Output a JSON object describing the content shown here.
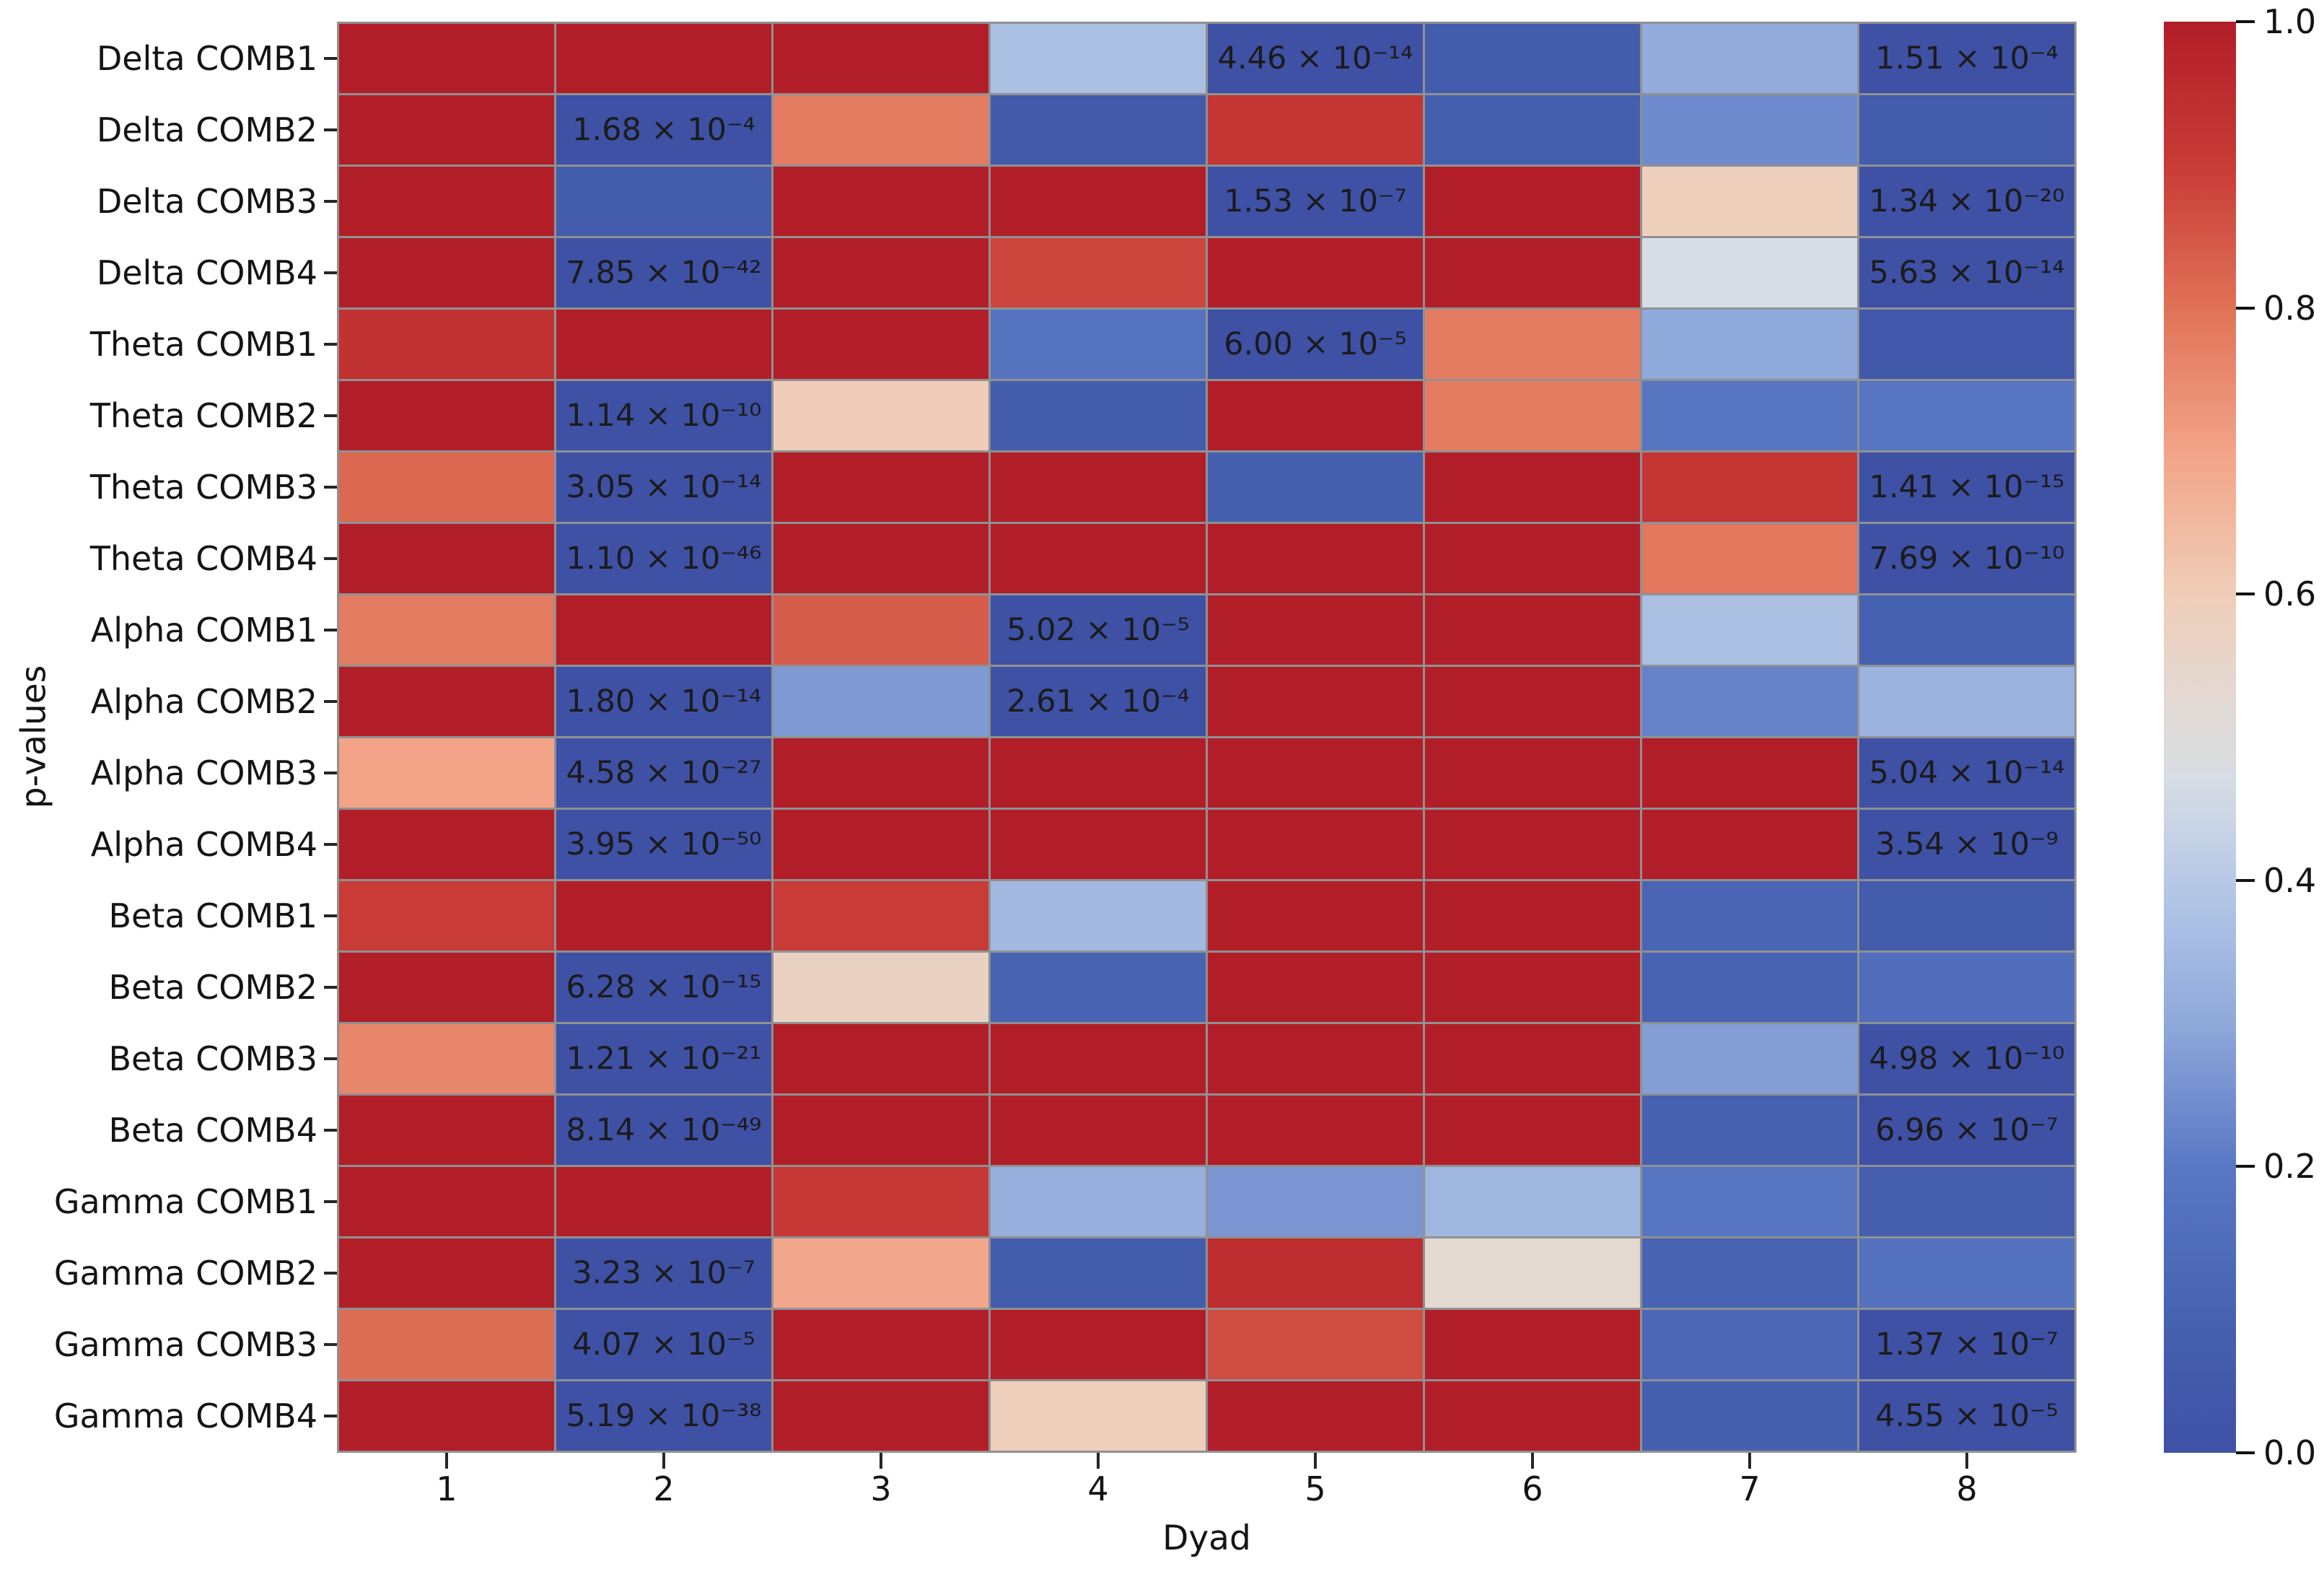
{
  "figure": {
    "xlabel": "Dyad",
    "ylabel": "p-values"
  },
  "chart_data": {
    "type": "heatmap",
    "title": "",
    "xlabel": "Dyad",
    "ylabel": "p-values",
    "x_categories": [
      "1",
      "2",
      "3",
      "4",
      "5",
      "6",
      "7",
      "8"
    ],
    "y_categories": [
      "Delta COMB1",
      "Delta COMB2",
      "Delta COMB3",
      "Delta COMB4",
      "Theta COMB1",
      "Theta COMB2",
      "Theta COMB3",
      "Theta COMB4",
      "Alpha COMB1",
      "Alpha COMB2",
      "Alpha COMB3",
      "Alpha COMB4",
      "Beta COMB1",
      "Beta COMB2",
      "Beta COMB3",
      "Beta COMB4",
      "Gamma COMB1",
      "Gamma COMB2",
      "Gamma COMB3",
      "Gamma COMB4"
    ],
    "values": [
      [
        1.0,
        1.0,
        1.0,
        0.37,
        0.0,
        0.06,
        0.31,
        0.0
      ],
      [
        1.0,
        0.0,
        0.78,
        0.05,
        0.92,
        0.08,
        0.24,
        0.06
      ],
      [
        1.0,
        0.06,
        1.0,
        1.0,
        0.0,
        1.0,
        0.59,
        0.0
      ],
      [
        1.0,
        0.0,
        1.0,
        0.88,
        1.0,
        1.0,
        0.47,
        0.0
      ],
      [
        0.93,
        1.0,
        1.0,
        0.18,
        0.0,
        0.78,
        0.3,
        0.04
      ],
      [
        1.0,
        0.0,
        0.6,
        0.06,
        1.0,
        0.78,
        0.19,
        0.19
      ],
      [
        0.82,
        0.0,
        1.0,
        1.0,
        0.08,
        1.0,
        0.92,
        0.0
      ],
      [
        1.0,
        0.0,
        1.0,
        1.0,
        1.0,
        1.0,
        0.79,
        0.0
      ],
      [
        0.78,
        1.0,
        0.84,
        0.0,
        1.0,
        1.0,
        0.37,
        0.09
      ],
      [
        1.0,
        0.0,
        0.27,
        0.0,
        1.0,
        1.0,
        0.22,
        0.33
      ],
      [
        0.7,
        0.0,
        1.0,
        1.0,
        1.0,
        1.0,
        1.0,
        0.0
      ],
      [
        1.0,
        0.0,
        1.0,
        1.0,
        1.0,
        1.0,
        1.0,
        0.0
      ],
      [
        0.9,
        1.0,
        0.9,
        0.35,
        1.0,
        1.0,
        0.11,
        0.06
      ],
      [
        1.0,
        0.0,
        0.57,
        0.1,
        1.0,
        1.0,
        0.1,
        0.15
      ],
      [
        0.76,
        0.0,
        1.0,
        1.0,
        1.0,
        1.0,
        0.28,
        0.0
      ],
      [
        1.0,
        0.0,
        1.0,
        1.0,
        1.0,
        1.0,
        0.09,
        0.0
      ],
      [
        1.0,
        1.0,
        0.91,
        0.32,
        0.26,
        0.34,
        0.19,
        0.07
      ],
      [
        1.0,
        0.0,
        0.69,
        0.06,
        0.95,
        0.53,
        0.1,
        0.17
      ],
      [
        0.81,
        0.0,
        1.0,
        1.0,
        0.87,
        1.0,
        0.12,
        0.0
      ],
      [
        1.0,
        0.0,
        1.0,
        0.59,
        1.0,
        1.0,
        0.08,
        0.0
      ]
    ],
    "annotations": [
      [
        null,
        null,
        null,
        null,
        "4.46 × 10⁻¹⁴",
        null,
        null,
        "1.51 × 10⁻⁴"
      ],
      [
        null,
        "1.68 × 10⁻⁴",
        null,
        null,
        null,
        null,
        null,
        null
      ],
      [
        null,
        null,
        null,
        null,
        "1.53 × 10⁻⁷",
        null,
        null,
        "1.34 × 10⁻²⁰"
      ],
      [
        null,
        "7.85 × 10⁻⁴²",
        null,
        null,
        null,
        null,
        null,
        "5.63 × 10⁻¹⁴"
      ],
      [
        null,
        null,
        null,
        null,
        "6.00 × 10⁻⁵",
        null,
        null,
        null
      ],
      [
        null,
        "1.14 × 10⁻¹⁰",
        null,
        null,
        null,
        null,
        null,
        null
      ],
      [
        null,
        "3.05 × 10⁻¹⁴",
        null,
        null,
        null,
        null,
        null,
        "1.41 × 10⁻¹⁵"
      ],
      [
        null,
        "1.10 × 10⁻⁴⁶",
        null,
        null,
        null,
        null,
        null,
        "7.69 × 10⁻¹⁰"
      ],
      [
        null,
        null,
        null,
        "5.02 × 10⁻⁵",
        null,
        null,
        null,
        null
      ],
      [
        null,
        "1.80 × 10⁻¹⁴",
        null,
        "2.61 × 10⁻⁴",
        null,
        null,
        null,
        null
      ],
      [
        null,
        "4.58 × 10⁻²⁷",
        null,
        null,
        null,
        null,
        null,
        "5.04 × 10⁻¹⁴"
      ],
      [
        null,
        "3.95 × 10⁻⁵⁰",
        null,
        null,
        null,
        null,
        null,
        "3.54 × 10⁻⁹"
      ],
      [
        null,
        null,
        null,
        null,
        null,
        null,
        null,
        null
      ],
      [
        null,
        "6.28 × 10⁻¹⁵",
        null,
        null,
        null,
        null,
        null,
        null
      ],
      [
        null,
        "1.21 × 10⁻²¹",
        null,
        null,
        null,
        null,
        null,
        "4.98 × 10⁻¹⁰"
      ],
      [
        null,
        "8.14 × 10⁻⁴⁹",
        null,
        null,
        null,
        null,
        null,
        "6.96 × 10⁻⁷"
      ],
      [
        null,
        null,
        null,
        null,
        null,
        null,
        null,
        null
      ],
      [
        null,
        "3.23 × 10⁻⁷",
        null,
        null,
        null,
        null,
        null,
        null
      ],
      [
        null,
        "4.07 × 10⁻⁵",
        null,
        null,
        null,
        null,
        null,
        "1.37 × 10⁻⁷"
      ],
      [
        null,
        "5.19 × 10⁻³⁸",
        null,
        null,
        null,
        null,
        null,
        "4.55 × 10⁻⁵"
      ]
    ],
    "colormap": {
      "name": "coolwarm",
      "stops": [
        [
          0.0,
          "#3f51a5"
        ],
        [
          0.1,
          "#4763b1"
        ],
        [
          0.2,
          "#5a77c4"
        ],
        [
          0.3,
          "#8fa9da"
        ],
        [
          0.4,
          "#b7c9e7"
        ],
        [
          0.47,
          "#d7dde4"
        ],
        [
          0.53,
          "#e3d9d1"
        ],
        [
          0.6,
          "#f0cdb8"
        ],
        [
          0.7,
          "#f2a388"
        ],
        [
          0.8,
          "#e07258"
        ],
        [
          0.9,
          "#c83b37"
        ],
        [
          1.0,
          "#b21e28"
        ]
      ]
    },
    "grid_line_color": "#8f9193",
    "colorbar": {
      "vmin": 0.0,
      "vmax": 1.0,
      "tick_labels": [
        "1.0",
        "0.8",
        "0.6",
        "0.4",
        "0.2",
        "0.0"
      ],
      "tick_values": [
        1.0,
        0.8,
        0.6,
        0.4,
        0.2,
        0.0
      ],
      "position": "right"
    },
    "legend": null,
    "grid": false
  }
}
